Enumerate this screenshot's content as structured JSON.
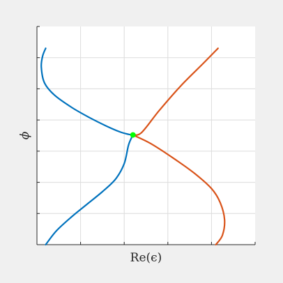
{
  "colors": {
    "figure_background": "#f0f0f0",
    "axes_background": "#ffffff",
    "grid": "#dcdcdc",
    "axis": "#262626",
    "series_blue": "#0072bd",
    "series_orange": "#d95319",
    "marker": "#00ff00"
  },
  "chart_data": {
    "type": "line",
    "title": "",
    "xlabel": "Re(ϵ)",
    "ylabel": "ϕ",
    "xlim": [
      0,
      5
    ],
    "ylim": [
      0,
      7
    ],
    "xticks": [
      0,
      1,
      2,
      3,
      4,
      5
    ],
    "yticks": [
      0,
      1,
      2,
      3,
      4,
      5,
      6,
      7
    ],
    "tick_labels_visible": false,
    "grid": true,
    "legend": "none",
    "series": [
      {
        "color": "#0072bd",
        "points": [
          [
            0.2,
            6.3
          ],
          [
            0.13,
            6.05
          ],
          [
            0.1,
            5.7
          ],
          [
            0.17,
            5.2
          ],
          [
            0.4,
            4.8
          ],
          [
            0.8,
            4.4
          ],
          [
            1.2,
            4.08
          ],
          [
            1.6,
            3.8
          ],
          [
            1.9,
            3.62
          ],
          [
            2.1,
            3.54
          ],
          [
            2.2,
            3.52
          ]
        ]
      },
      {
        "color": "#0072bd",
        "points": [
          [
            0.2,
            0.0
          ],
          [
            0.45,
            0.45
          ],
          [
            0.8,
            0.9
          ],
          [
            1.15,
            1.3
          ],
          [
            1.5,
            1.7
          ],
          [
            1.8,
            2.1
          ],
          [
            2.0,
            2.6
          ],
          [
            2.1,
            3.2
          ],
          [
            2.2,
            3.52
          ]
        ]
      },
      {
        "color": "#d95319",
        "points": [
          [
            2.2,
            3.52
          ],
          [
            2.4,
            3.6
          ],
          [
            2.8,
            4.3
          ],
          [
            3.3,
            5.1
          ],
          [
            3.8,
            5.8
          ],
          [
            4.15,
            6.3
          ]
        ]
      },
      {
        "color": "#d95319",
        "points": [
          [
            2.2,
            3.52
          ],
          [
            2.6,
            3.25
          ],
          [
            3.1,
            2.8
          ],
          [
            3.6,
            2.3
          ],
          [
            4.0,
            1.8
          ],
          [
            4.2,
            1.35
          ],
          [
            4.3,
            0.8
          ],
          [
            4.25,
            0.3
          ],
          [
            4.1,
            0.0
          ]
        ]
      }
    ],
    "markers": [
      {
        "x": 2.2,
        "y": 3.52,
        "color": "#00ff00"
      }
    ]
  }
}
